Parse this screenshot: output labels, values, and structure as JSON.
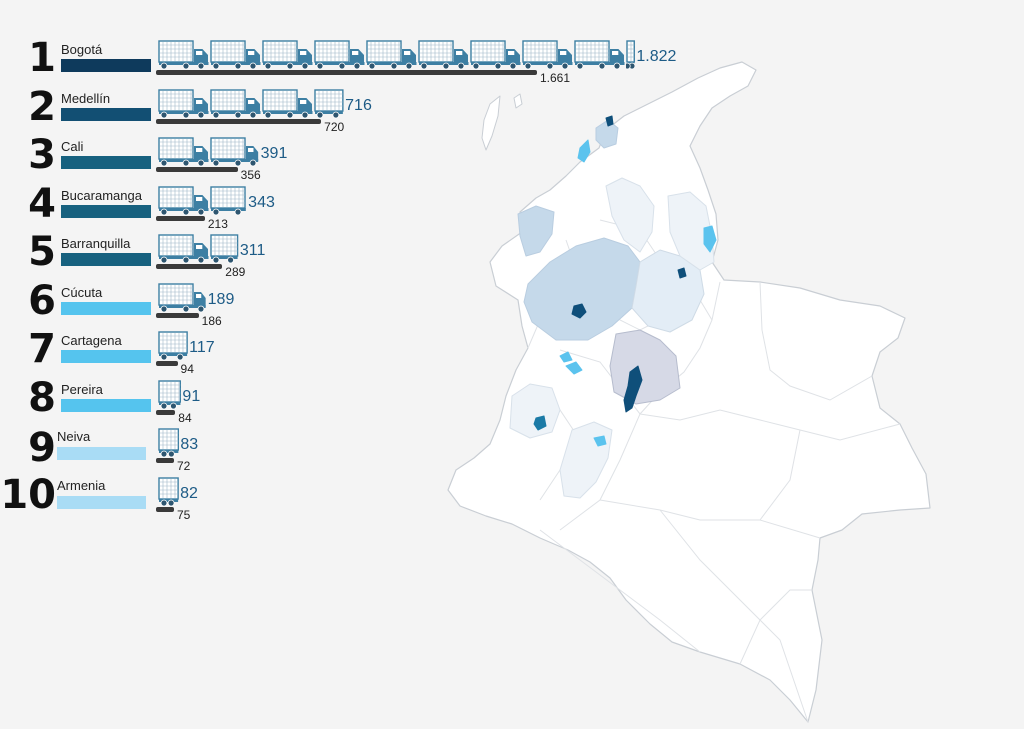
{
  "chart_data": {
    "type": "bar",
    "categories": [
      "Bogotá",
      "Medellín",
      "Cali",
      "Bucaramanga",
      "Barranquilla",
      "Cúcuta",
      "Cartagena",
      "Pereira",
      "Neiva",
      "Armenia"
    ],
    "ranks": [
      "1",
      "2",
      "3",
      "4",
      "5",
      "6",
      "7",
      "8",
      "9",
      "10"
    ],
    "series": [
      {
        "values": [
          1822,
          716,
          391,
          343,
          311,
          189,
          117,
          91,
          83,
          82
        ]
      },
      {
        "values": [
          1661,
          720,
          356,
          213,
          289,
          186,
          94,
          84,
          72,
          75
        ]
      }
    ],
    "current_labels": [
      "1.822",
      "716",
      "391",
      "343",
      "311",
      "189",
      "117",
      "91",
      "83",
      "82"
    ],
    "previous_labels": [
      "1.661",
      "720",
      "356",
      "213",
      "289",
      "186",
      "94",
      "84",
      "72",
      "75"
    ],
    "units_per_truck_icon": 200,
    "bar_colors": [
      "#0e3a5c",
      "#124f73",
      "#17617f",
      "#17617f",
      "#17617f",
      "#55c4ee",
      "#55c4ee",
      "#55c4ee",
      "#a9dcf5",
      "#a9dcf5"
    ],
    "current_value_color": "#1d5b86",
    "previous_bar_color": "#3a3a3a",
    "truck_icon": "truck-icon"
  },
  "map": {
    "region_icon": "colombia-map",
    "base_color": "#ffffff",
    "highlight_colors": [
      "#c5d9ea",
      "#e3edf6",
      "#eef3f8",
      "#d6d9e6",
      "#0f4f7a",
      "#5bc3ee"
    ]
  }
}
